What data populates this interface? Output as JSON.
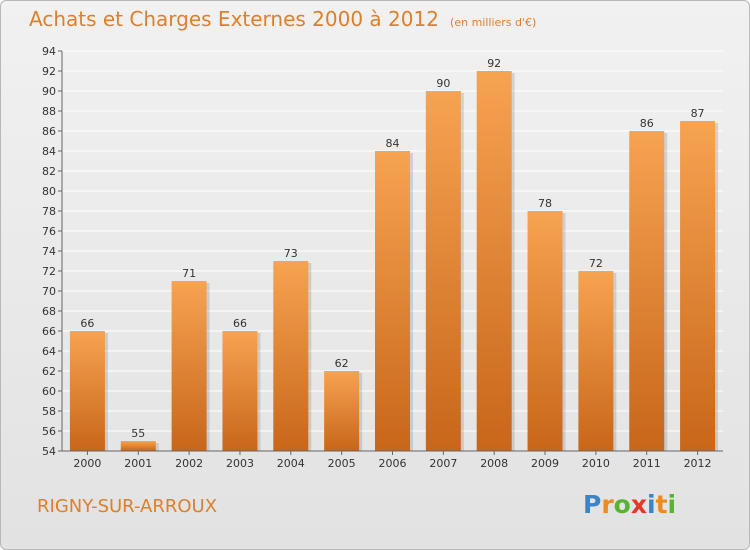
{
  "header": {
    "title": "Achats et Charges Externes 2000 à 2012",
    "subtitle": "(en milliers d'€)"
  },
  "footer": {
    "place": "RIGNY-SUR-ARROUX",
    "logo_letters": [
      "P",
      "r",
      "o",
      "x",
      "i",
      "t",
      "i"
    ],
    "logo_colors": [
      "#3a84c9",
      "#f08a1c",
      "#58b331",
      "#e5382c",
      "#3a84c9",
      "#f08a1c",
      "#58b331"
    ]
  },
  "colors": {
    "bar_light": "#f6a352",
    "bar_dark": "#c8661a",
    "accent": "#e07f2a",
    "grid": "#ffffff"
  },
  "chart_data": {
    "type": "bar",
    "title": "Achats et Charges Externes 2000 à 2012",
    "subtitle": "(en milliers d'€)",
    "categories": [
      "2000",
      "2001",
      "2002",
      "2003",
      "2004",
      "2005",
      "2006",
      "2007",
      "2008",
      "2009",
      "2010",
      "2011",
      "2012"
    ],
    "values": [
      66,
      55,
      71,
      66,
      73,
      62,
      84,
      90,
      92,
      78,
      72,
      86,
      87
    ],
    "ylim": [
      54,
      94
    ],
    "yticks": [
      54,
      56,
      58,
      60,
      62,
      64,
      66,
      68,
      70,
      72,
      74,
      76,
      78,
      80,
      82,
      84,
      86,
      88,
      90,
      92,
      94
    ],
    "grid": true,
    "xlabel": "",
    "ylabel": ""
  }
}
